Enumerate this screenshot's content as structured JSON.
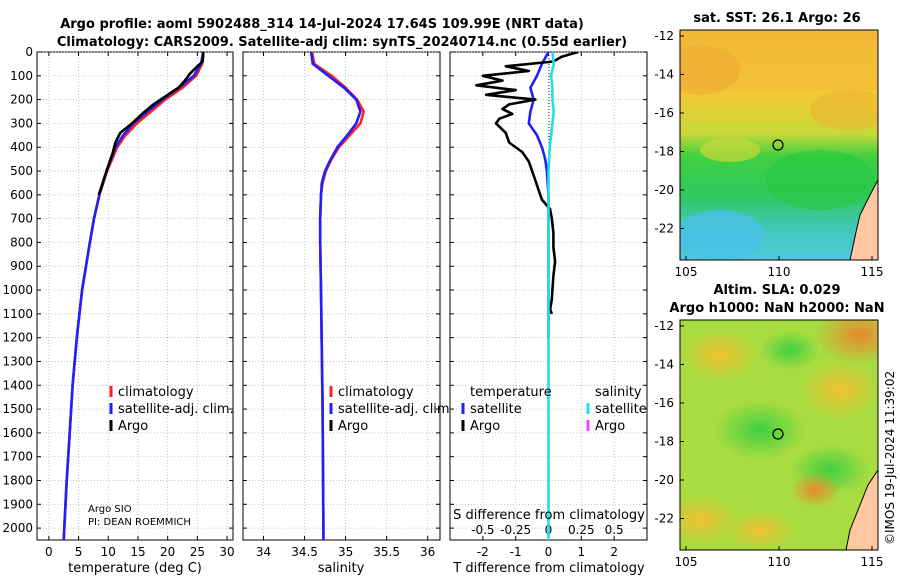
{
  "title": {
    "line1": "Argo profile: aoml 5902488_314 14-Jul-2024 17.64S 109.99E (NRT data)",
    "line2": "Climatology: CARS2009. Satellite-adj clim: synTS_20240714.nc (0.55d earlier)"
  },
  "colors": {
    "climatology": "#ff2020",
    "satellite_adj": "#2020ff",
    "argo": "#000000",
    "sal_sat": "#22e0e0",
    "sal_argo": "#ff40ff"
  },
  "chart_data": [
    {
      "type": "line",
      "id": "temperature",
      "xlabel": "temperature (deg C)",
      "ylabel": "",
      "xlim": [
        -2,
        31
      ],
      "ylim": [
        2050,
        0
      ],
      "xticks": [
        0,
        5,
        10,
        15,
        20,
        25,
        30
      ],
      "yticks": [
        0,
        100,
        200,
        300,
        400,
        500,
        600,
        700,
        800,
        900,
        1000,
        1100,
        1200,
        1300,
        1400,
        1500,
        1600,
        1700,
        1800,
        1900,
        2000
      ],
      "legend": [
        "climatology",
        "satellite-adj. clim.",
        "Argo"
      ],
      "annotations": [
        "Argo SIO",
        "PI: DEAN ROEMMICH"
      ],
      "series": [
        {
          "name": "climatology",
          "depth": [
            0,
            50,
            100,
            150,
            200,
            250,
            300,
            350,
            400,
            500,
            600,
            700,
            800,
            1000,
            1200,
            1400,
            1600,
            1800,
            2000,
            2050
          ],
          "values": [
            26.0,
            25.8,
            24.8,
            22.5,
            19.6,
            17.2,
            14.8,
            12.9,
            11.5,
            9.8,
            8.5,
            7.6,
            6.9,
            5.6,
            4.7,
            4.0,
            3.5,
            3.0,
            2.6,
            2.5
          ]
        },
        {
          "name": "satellite-adj. clim.",
          "depth": [
            0,
            50,
            100,
            150,
            200,
            250,
            300,
            350,
            400,
            500,
            600,
            700,
            800,
            1000,
            1200,
            1400,
            1600,
            1800,
            2000,
            2050
          ],
          "values": [
            26.0,
            25.6,
            24.4,
            21.9,
            19.1,
            16.6,
            14.2,
            12.5,
            11.2,
            9.7,
            8.5,
            7.6,
            6.9,
            5.6,
            4.7,
            4.0,
            3.5,
            3.0,
            2.6,
            2.5
          ]
        },
        {
          "name": "Argo",
          "depth": [
            0,
            40,
            60,
            90,
            120,
            150,
            180,
            220,
            260,
            300,
            340,
            380,
            420,
            500,
            600
          ],
          "values": [
            26.0,
            25.9,
            25.0,
            23.8,
            22.9,
            21.8,
            20.0,
            17.6,
            15.7,
            14.0,
            12.0,
            11.2,
            10.8,
            9.7,
            8.4
          ]
        }
      ]
    },
    {
      "type": "line",
      "id": "salinity",
      "xlabel": "salinity",
      "ylabel": "",
      "xlim": [
        33.75,
        36.15
      ],
      "ylim": [
        2050,
        0
      ],
      "xtick_labels": [
        "34",
        "34.5",
        "35",
        "35.5",
        "36"
      ],
      "xticks": [
        34,
        34.5,
        35,
        35.5,
        36
      ],
      "legend": [
        "climatology",
        "satellite-adj. clim.",
        "Argo"
      ],
      "series": [
        {
          "name": "climatology",
          "depth": [
            0,
            50,
            100,
            150,
            200,
            250,
            300,
            350,
            400,
            450,
            500,
            550,
            600,
            700,
            800,
            1000,
            1500,
            2000,
            2050
          ],
          "values": [
            34.59,
            34.62,
            34.83,
            35.0,
            35.14,
            35.22,
            35.18,
            35.05,
            34.92,
            34.83,
            34.76,
            34.72,
            34.7,
            34.69,
            34.69,
            34.7,
            34.72,
            34.73,
            34.73
          ]
        },
        {
          "name": "satellite-adj. clim.",
          "depth": [
            0,
            50,
            100,
            150,
            200,
            250,
            300,
            350,
            400,
            450,
            500,
            550,
            600,
            700,
            800,
            1000,
            1500,
            2000,
            2050
          ],
          "values": [
            34.58,
            34.6,
            34.79,
            34.98,
            35.13,
            35.18,
            35.13,
            35.02,
            34.9,
            34.82,
            34.75,
            34.71,
            34.7,
            34.69,
            34.69,
            34.7,
            34.72,
            34.73,
            34.73
          ]
        }
      ]
    },
    {
      "type": "line",
      "id": "difference",
      "xlabel": "T difference from climatology",
      "xlabel2": "S difference from climatology",
      "xlim": [
        -3,
        3
      ],
      "ylim": [
        2050,
        0
      ],
      "xtick_labels": [
        "-2",
        "-1",
        "0",
        "1",
        "2"
      ],
      "xticks": [
        -2,
        -1,
        0,
        1,
        2
      ],
      "xtick2_labels": [
        "-0.5",
        "-0.25",
        "0",
        "0.25",
        "0.5"
      ],
      "legend_groups": {
        "temperature": [
          "satellite",
          "Argo"
        ],
        "salinity": [
          "satellite",
          "Argo"
        ]
      },
      "series": [
        {
          "name": "temperature satellite",
          "depth": [
            0,
            50,
            100,
            150,
            200,
            250,
            300,
            350,
            400,
            450,
            500,
            600,
            700,
            800,
            1000,
            1200
          ],
          "values": [
            0.0,
            -0.2,
            -0.35,
            -0.55,
            -0.45,
            -0.55,
            -0.6,
            -0.35,
            -0.2,
            -0.1,
            -0.05,
            0,
            0,
            0,
            0,
            0
          ]
        },
        {
          "name": "temperature Argo",
          "depth": [
            0,
            20,
            40,
            60,
            80,
            100,
            120,
            140,
            160,
            180,
            200,
            220,
            240,
            260,
            280,
            300,
            340,
            380,
            420,
            460,
            500,
            540,
            580,
            620,
            660,
            700,
            760,
            820,
            880,
            940,
            1000,
            1040,
            1080,
            1100
          ],
          "values": [
            0.9,
            0.4,
            0.15,
            -1.3,
            -0.6,
            -2.0,
            -1.4,
            -2.2,
            -1.0,
            -1.9,
            -0.4,
            -1.2,
            -1.4,
            -1.1,
            -1.5,
            -1.6,
            -1.3,
            -1.2,
            -0.8,
            -0.6,
            -0.5,
            -0.4,
            -0.3,
            -0.2,
            0.05,
            0.1,
            0.15,
            0.15,
            0.2,
            0.15,
            0.12,
            0.1,
            0.05,
            0.1
          ]
        },
        {
          "name": "salinity satellite",
          "depth": [
            0,
            50,
            100,
            150,
            200,
            250,
            300,
            350,
            400,
            500,
            600,
            800,
            1000,
            1500,
            2000,
            2050
          ],
          "values": [
            0.03,
            0.04,
            0.02,
            0.03,
            0.03,
            0.04,
            0.03,
            0.02,
            0.01,
            0.0,
            0.0,
            0.0,
            0.0,
            0.0,
            0.0,
            0.0
          ]
        }
      ]
    }
  ],
  "map_sst": {
    "title": "sat. SST: 26.1 Argo: 26",
    "xticks": [
      "105",
      "110",
      "115"
    ],
    "yticks": [
      "-12",
      "-14",
      "-16",
      "-18",
      "-20",
      "-22"
    ]
  },
  "map_sla": {
    "title1": "Altim. SLA: 0.029",
    "title2": "Argo h1000: NaN h2000: NaN",
    "xticks": [
      "105",
      "110",
      "115"
    ],
    "yticks": [
      "-12",
      "-14",
      "-16",
      "-18",
      "-20",
      "-22"
    ]
  },
  "credit": "©IMOS 19-Jul-2024 11:39:02"
}
